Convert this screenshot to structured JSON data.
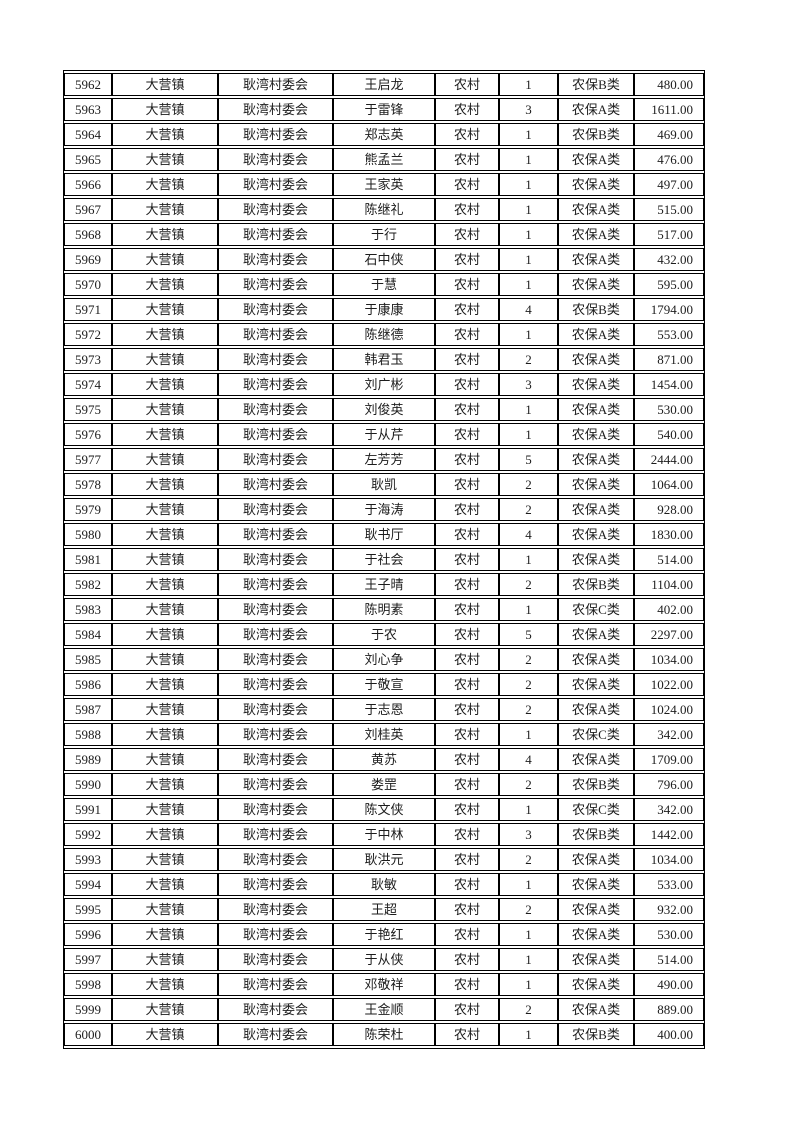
{
  "document": {
    "kind": "printed-spreadsheet-page",
    "background_color": "#ffffff",
    "border_color": "#000000",
    "text_color": "#1c1c1c"
  },
  "table": {
    "columns": [
      {
        "key": "seq",
        "name": "sequence-number"
      },
      {
        "key": "town",
        "name": "town"
      },
      {
        "key": "village",
        "name": "village-committee"
      },
      {
        "key": "person",
        "name": "person-name"
      },
      {
        "key": "type",
        "name": "household-type"
      },
      {
        "key": "count",
        "name": "person-count"
      },
      {
        "key": "category",
        "name": "insurance-category"
      },
      {
        "key": "amount",
        "name": "amount"
      }
    ],
    "rows": [
      [
        "5962",
        "大营镇",
        "耿湾村委会",
        "王启龙",
        "农村",
        "1",
        "农保B类",
        "480.00"
      ],
      [
        "5963",
        "大营镇",
        "耿湾村委会",
        "于雷锋",
        "农村",
        "3",
        "农保A类",
        "1611.00"
      ],
      [
        "5964",
        "大营镇",
        "耿湾村委会",
        "郑志英",
        "农村",
        "1",
        "农保B类",
        "469.00"
      ],
      [
        "5965",
        "大营镇",
        "耿湾村委会",
        "熊孟兰",
        "农村",
        "1",
        "农保A类",
        "476.00"
      ],
      [
        "5966",
        "大营镇",
        "耿湾村委会",
        "王家英",
        "农村",
        "1",
        "农保A类",
        "497.00"
      ],
      [
        "5967",
        "大营镇",
        "耿湾村委会",
        "陈继礼",
        "农村",
        "1",
        "农保A类",
        "515.00"
      ],
      [
        "5968",
        "大营镇",
        "耿湾村委会",
        "于行",
        "农村",
        "1",
        "农保A类",
        "517.00"
      ],
      [
        "5969",
        "大营镇",
        "耿湾村委会",
        "石中侠",
        "农村",
        "1",
        "农保A类",
        "432.00"
      ],
      [
        "5970",
        "大营镇",
        "耿湾村委会",
        "于慧",
        "农村",
        "1",
        "农保A类",
        "595.00"
      ],
      [
        "5971",
        "大营镇",
        "耿湾村委会",
        "于康康",
        "农村",
        "4",
        "农保B类",
        "1794.00"
      ],
      [
        "5972",
        "大营镇",
        "耿湾村委会",
        "陈继德",
        "农村",
        "1",
        "农保A类",
        "553.00"
      ],
      [
        "5973",
        "大营镇",
        "耿湾村委会",
        "韩君玉",
        "农村",
        "2",
        "农保A类",
        "871.00"
      ],
      [
        "5974",
        "大营镇",
        "耿湾村委会",
        "刘广彬",
        "农村",
        "3",
        "农保A类",
        "1454.00"
      ],
      [
        "5975",
        "大营镇",
        "耿湾村委会",
        "刘俊英",
        "农村",
        "1",
        "农保A类",
        "530.00"
      ],
      [
        "5976",
        "大营镇",
        "耿湾村委会",
        "于从芹",
        "农村",
        "1",
        "农保A类",
        "540.00"
      ],
      [
        "5977",
        "大营镇",
        "耿湾村委会",
        "左芳芳",
        "农村",
        "5",
        "农保A类",
        "2444.00"
      ],
      [
        "5978",
        "大营镇",
        "耿湾村委会",
        "耿凯",
        "农村",
        "2",
        "农保A类",
        "1064.00"
      ],
      [
        "5979",
        "大营镇",
        "耿湾村委会",
        "于海涛",
        "农村",
        "2",
        "农保A类",
        "928.00"
      ],
      [
        "5980",
        "大营镇",
        "耿湾村委会",
        "耿书厅",
        "农村",
        "4",
        "农保A类",
        "1830.00"
      ],
      [
        "5981",
        "大营镇",
        "耿湾村委会",
        "于社会",
        "农村",
        "1",
        "农保A类",
        "514.00"
      ],
      [
        "5982",
        "大营镇",
        "耿湾村委会",
        "王子晴",
        "农村",
        "2",
        "农保B类",
        "1104.00"
      ],
      [
        "5983",
        "大营镇",
        "耿湾村委会",
        "陈明素",
        "农村",
        "1",
        "农保C类",
        "402.00"
      ],
      [
        "5984",
        "大营镇",
        "耿湾村委会",
        "于农",
        "农村",
        "5",
        "农保A类",
        "2297.00"
      ],
      [
        "5985",
        "大营镇",
        "耿湾村委会",
        "刘心争",
        "农村",
        "2",
        "农保A类",
        "1034.00"
      ],
      [
        "5986",
        "大营镇",
        "耿湾村委会",
        "于敬宣",
        "农村",
        "2",
        "农保A类",
        "1022.00"
      ],
      [
        "5987",
        "大营镇",
        "耿湾村委会",
        "于志恩",
        "农村",
        "2",
        "农保A类",
        "1024.00"
      ],
      [
        "5988",
        "大营镇",
        "耿湾村委会",
        "刘桂英",
        "农村",
        "1",
        "农保C类",
        "342.00"
      ],
      [
        "5989",
        "大营镇",
        "耿湾村委会",
        "黄苏",
        "农村",
        "4",
        "农保A类",
        "1709.00"
      ],
      [
        "5990",
        "大营镇",
        "耿湾村委会",
        "娄罡",
        "农村",
        "2",
        "农保B类",
        "796.00"
      ],
      [
        "5991",
        "大营镇",
        "耿湾村委会",
        "陈文侠",
        "农村",
        "1",
        "农保C类",
        "342.00"
      ],
      [
        "5992",
        "大营镇",
        "耿湾村委会",
        "于中林",
        "农村",
        "3",
        "农保B类",
        "1442.00"
      ],
      [
        "5993",
        "大营镇",
        "耿湾村委会",
        "耿洪元",
        "农村",
        "2",
        "农保A类",
        "1034.00"
      ],
      [
        "5994",
        "大营镇",
        "耿湾村委会",
        "耿敏",
        "农村",
        "1",
        "农保A类",
        "533.00"
      ],
      [
        "5995",
        "大营镇",
        "耿湾村委会",
        "王超",
        "农村",
        "2",
        "农保A类",
        "932.00"
      ],
      [
        "5996",
        "大营镇",
        "耿湾村委会",
        "于艳红",
        "农村",
        "1",
        "农保A类",
        "530.00"
      ],
      [
        "5997",
        "大营镇",
        "耿湾村委会",
        "于从侠",
        "农村",
        "1",
        "农保A类",
        "514.00"
      ],
      [
        "5998",
        "大营镇",
        "耿湾村委会",
        "邓敬祥",
        "农村",
        "1",
        "农保A类",
        "490.00"
      ],
      [
        "5999",
        "大营镇",
        "耿湾村委会",
        "王金顺",
        "农村",
        "2",
        "农保A类",
        "889.00"
      ],
      [
        "6000",
        "大营镇",
        "耿湾村委会",
        "陈荣杜",
        "农村",
        "1",
        "农保B类",
        "400.00"
      ]
    ]
  }
}
